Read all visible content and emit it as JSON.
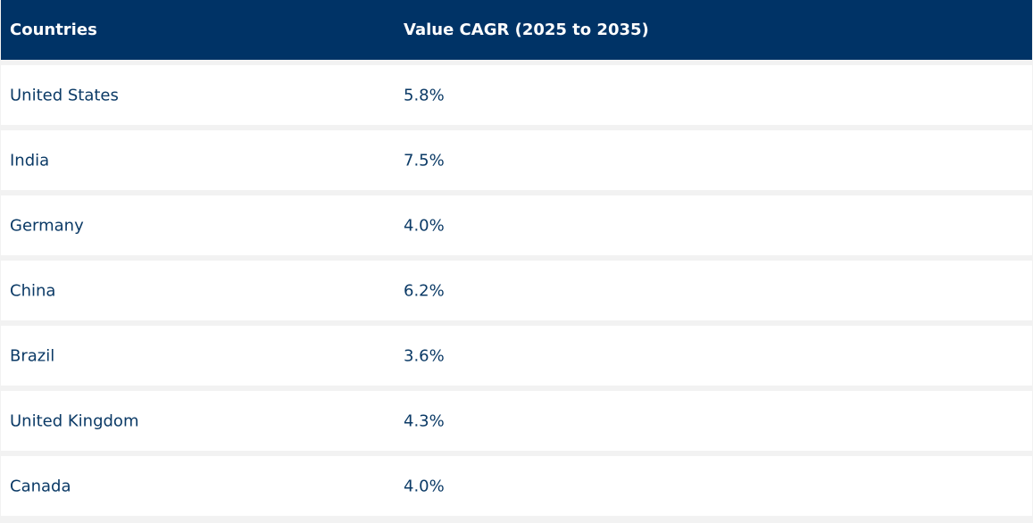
{
  "chart_data": {
    "type": "table",
    "columns": [
      "Countries",
      "Value CAGR (2025 to 2035)"
    ],
    "rows": [
      {
        "country": "United States",
        "cagr": "5.8%"
      },
      {
        "country": "India",
        "cagr": "7.5%"
      },
      {
        "country": "Germany",
        "cagr": "4.0%"
      },
      {
        "country": "China",
        "cagr": "6.2%"
      },
      {
        "country": "Brazil",
        "cagr": "3.6%"
      },
      {
        "country": "United Kingdom",
        "cagr": "4.3%"
      },
      {
        "country": "Canada",
        "cagr": "4.0%"
      }
    ]
  },
  "colors": {
    "header_bg": "#003366",
    "header_text": "#ffffff",
    "row_bg": "#ffffff",
    "row_text": "#0b3a66",
    "separator": "#f2f2f2"
  }
}
